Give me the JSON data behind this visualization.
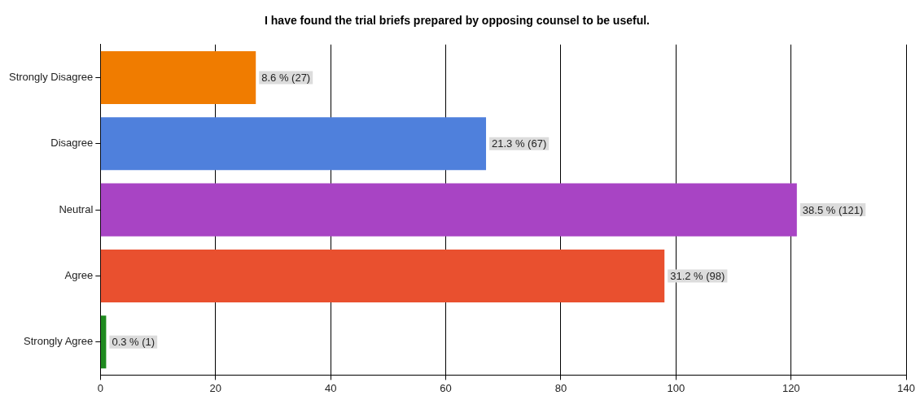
{
  "chart_data": {
    "type": "bar",
    "orientation": "horizontal",
    "title": "I have found the trial briefs prepared by opposing counsel to be useful.",
    "categories": [
      "Strongly Disagree",
      "Disagree",
      "Neutral",
      "Agree",
      "Strongly Agree"
    ],
    "values": [
      27,
      67,
      121,
      98,
      1
    ],
    "colors": [
      "#f07c00",
      "#4f80dc",
      "#a844c4",
      "#e9502f",
      "#1e8a1e"
    ],
    "value_labels": [
      "8.6 % (27)",
      "21.3 % (67)",
      "38.5 % (121)",
      "31.2 % (98)",
      "0.3 % (1)"
    ],
    "xlim": [
      0,
      140
    ],
    "xticks": [
      0,
      20,
      40,
      60,
      80,
      100,
      120,
      140
    ],
    "grid": "x",
    "legend": false
  }
}
